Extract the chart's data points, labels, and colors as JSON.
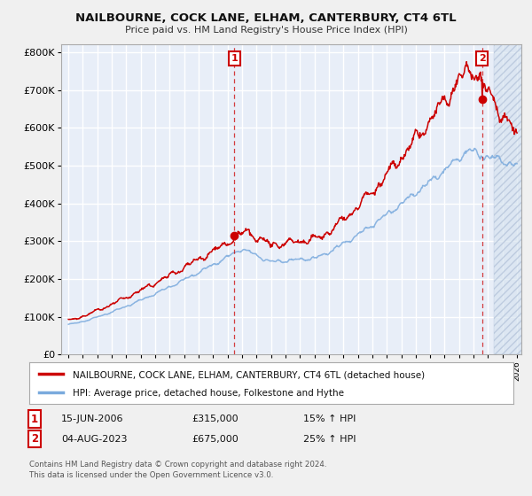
{
  "title": "NAILBOURNE, COCK LANE, ELHAM, CANTERBURY, CT4 6TL",
  "subtitle": "Price paid vs. HM Land Registry's House Price Index (HPI)",
  "red_label": "NAILBOURNE, COCK LANE, ELHAM, CANTERBURY, CT4 6TL (detached house)",
  "blue_label": "HPI: Average price, detached house, Folkestone and Hythe",
  "point1_date": "15-JUN-2006",
  "point1_price": "£315,000",
  "point1_hpi": "15% ↑ HPI",
  "point1_x": 2006.46,
  "point1_y": 315000,
  "point2_date": "04-AUG-2023",
  "point2_price": "£675,000",
  "point2_hpi": "25% ↑ HPI",
  "point2_x": 2023.59,
  "point2_y": 675000,
  "red_color": "#cc0000",
  "blue_color": "#7aaadd",
  "background_color": "#e8eef8",
  "grid_color": "#ffffff",
  "hatch_color": "#d0d8e8",
  "ylim": [
    0,
    820000
  ],
  "yticks": [
    0,
    100000,
    200000,
    300000,
    400000,
    500000,
    600000,
    700000,
    800000
  ],
  "xmin": 1995,
  "xmax": 2026,
  "footer": "Contains HM Land Registry data © Crown copyright and database right 2024.\nThis data is licensed under the Open Government Licence v3.0."
}
